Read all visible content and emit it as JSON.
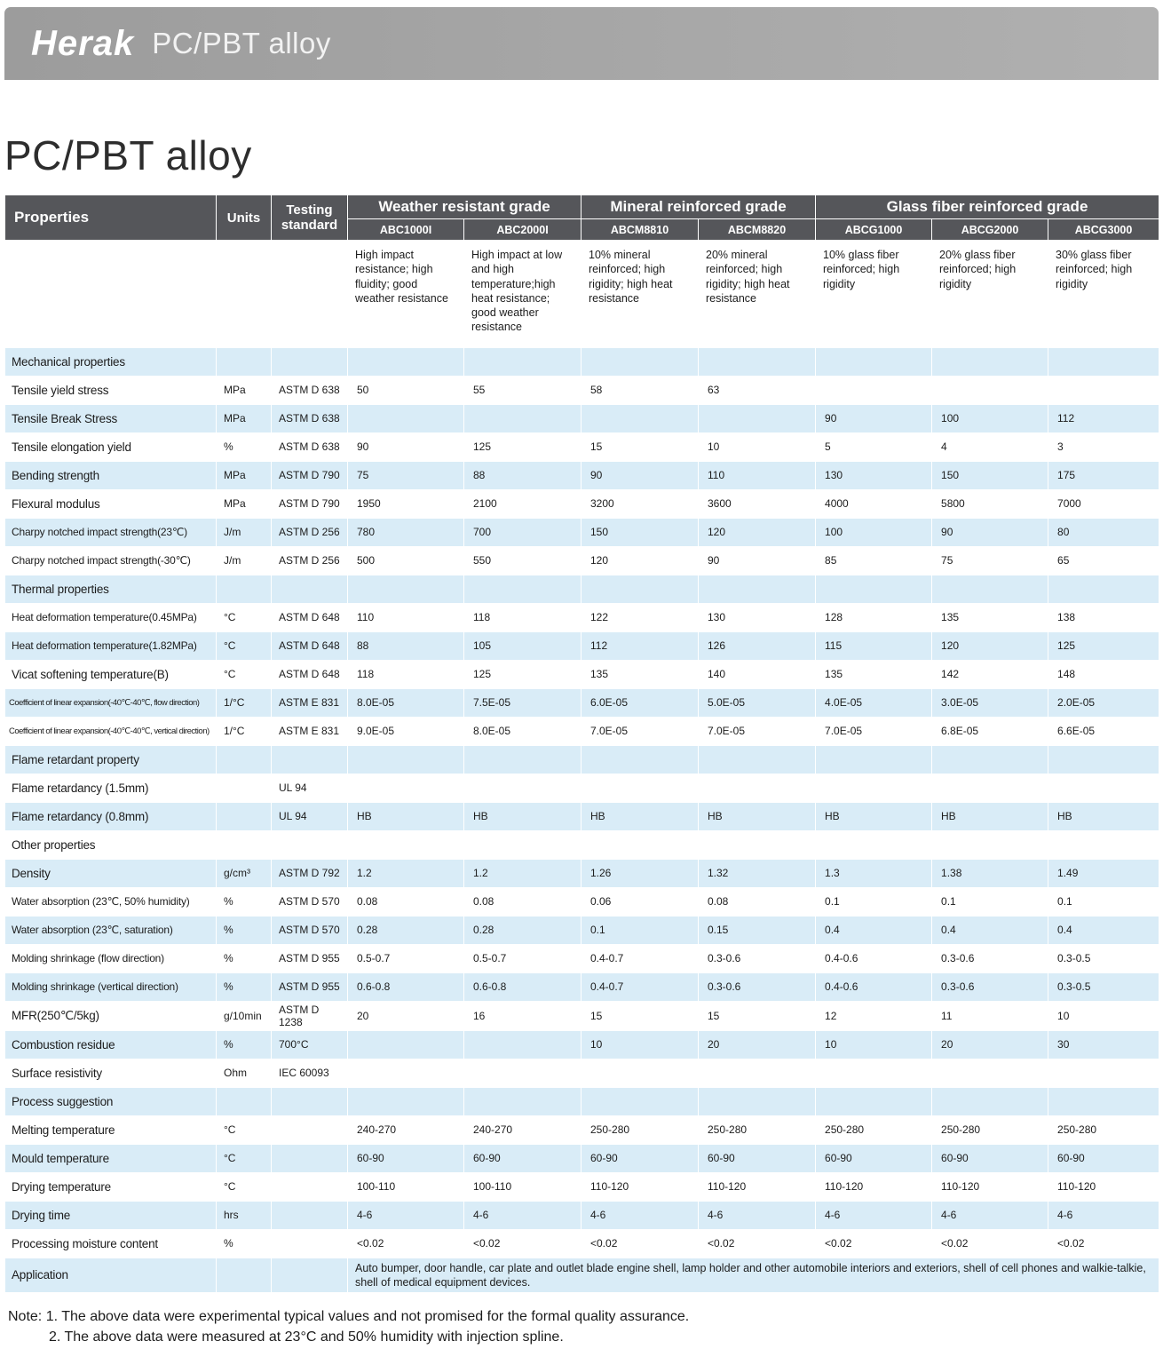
{
  "banner": {
    "logo": "Herak",
    "subtitle": "PC/PBT alloy"
  },
  "page_title": "PC/PBT alloy",
  "colors": {
    "header_bg": "#55565A",
    "row_blue": "#D9ECF7",
    "banner_gray": "#A6A6A6",
    "text": "#1C1C1C"
  },
  "table": {
    "header": {
      "properties": "Properties",
      "units": "Units",
      "standard": "Testing standard",
      "groups": [
        {
          "label": "Weather resistant grade",
          "products": [
            "ABC1000I",
            "ABC2000I"
          ]
        },
        {
          "label": "Mineral reinforced grade",
          "products": [
            "ABCM8810",
            "ABCM8820"
          ]
        },
        {
          "label": "Glass fiber reinforced grade",
          "products": [
            "ABCG1000",
            "ABCG2000",
            "ABCG3000"
          ]
        }
      ]
    },
    "descriptions": [
      "High impact resistance; high fluidity; good weather resistance",
      "High impact at low and high temperature;high heat resistance; good weather resistance",
      "10% mineral reinforced; high rigidity; high heat resistance",
      "20% mineral reinforced; high rigidity; high heat resistance",
      "10% glass fiber reinforced; high rigidity",
      "20% glass fiber reinforced; high rigidity",
      "30% glass fiber reinforced; high rigidity"
    ],
    "rows": [
      {
        "type": "section",
        "name": "Mechanical properties"
      },
      {
        "type": "data",
        "name": "Tensile yield stress",
        "units": "MPa",
        "standard": "ASTM D 638",
        "values": [
          "50",
          "55",
          "58",
          "63",
          "",
          "",
          ""
        ]
      },
      {
        "type": "data",
        "name": "Tensile Break Stress",
        "units": "MPa",
        "standard": "ASTM D 638",
        "values": [
          "",
          "",
          "",
          "",
          "90",
          "100",
          "112"
        ]
      },
      {
        "type": "data",
        "name": "Tensile elongation yield",
        "units": "%",
        "standard": "ASTM D 638",
        "values": [
          "90",
          "125",
          "15",
          "10",
          "5",
          "4",
          "3"
        ]
      },
      {
        "type": "data",
        "name": "Bending strength",
        "units": "MPa",
        "standard": "ASTM D 790",
        "values": [
          "75",
          "88",
          "90",
          "110",
          "130",
          "150",
          "175"
        ]
      },
      {
        "type": "data",
        "name": "Flexural modulus",
        "units": "MPa",
        "standard": "ASTM D 790",
        "values": [
          "1950",
          "2100",
          "3200",
          "3600",
          "4000",
          "5800",
          "7000"
        ]
      },
      {
        "type": "data",
        "name": "Charpy notched impact strength(23℃)",
        "units": "J/m",
        "standard": "ASTM D 256",
        "values": [
          "780",
          "700",
          "150",
          "120",
          "100",
          "90",
          "80"
        ]
      },
      {
        "type": "data",
        "name": "Charpy notched impact strength(-30℃)",
        "units": "J/m",
        "standard": "ASTM D 256",
        "values": [
          "500",
          "550",
          "120",
          "90",
          "85",
          "75",
          "65"
        ]
      },
      {
        "type": "section",
        "name": "Thermal properties"
      },
      {
        "type": "data",
        "name": "Heat deformation temperature(0.45MPa)",
        "units": "°C",
        "standard": "ASTM D 648",
        "values": [
          "110",
          "118",
          "122",
          "130",
          "128",
          "135",
          "138"
        ]
      },
      {
        "type": "data",
        "name": "Heat deformation temperature(1.82MPa)",
        "units": "°C",
        "standard": "ASTM D 648",
        "values": [
          "88",
          "105",
          "112",
          "126",
          "115",
          "120",
          "125"
        ]
      },
      {
        "type": "data",
        "name": "Vicat softening temperature(B)",
        "units": "°C",
        "standard": "ASTM D 648",
        "values": [
          "118",
          "125",
          "135",
          "140",
          "135",
          "142",
          "148"
        ]
      },
      {
        "type": "data",
        "name": "Coefficient of linear expansion(-40℃-40℃, flow direction)",
        "units": "1/°C",
        "standard": "ASTM E 831",
        "values": [
          "8.0E-05",
          "7.5E-05",
          "6.0E-05",
          "5.0E-05",
          "4.0E-05",
          "3.0E-05",
          "2.0E-05"
        ]
      },
      {
        "type": "data",
        "name": "Coefficient of linear expansion(-40℃-40℃, vertical direction)",
        "units": "1/°C",
        "standard": "ASTM E 831",
        "values": [
          "9.0E-05",
          "8.0E-05",
          "7.0E-05",
          "7.0E-05",
          "7.0E-05",
          "6.8E-05",
          "6.6E-05"
        ]
      },
      {
        "type": "section",
        "name": "Flame retardant property"
      },
      {
        "type": "data",
        "name": "Flame retardancy (1.5mm)",
        "units": "",
        "standard": "UL 94",
        "values": [
          "",
          "",
          "",
          "",
          "",
          "",
          ""
        ]
      },
      {
        "type": "data",
        "name": "Flame retardancy (0.8mm)",
        "units": "",
        "standard": "UL 94",
        "values": [
          "HB",
          "HB",
          "HB",
          "HB",
          "HB",
          "HB",
          "HB"
        ]
      },
      {
        "type": "section",
        "name": "Other properties"
      },
      {
        "type": "data",
        "name": "Density",
        "units": "g/cm³",
        "standard": "ASTM D 792",
        "values": [
          "1.2",
          "1.2",
          "1.26",
          "1.32",
          "1.3",
          "1.38",
          "1.49"
        ]
      },
      {
        "type": "data",
        "name": "Water absorption (23℃, 50% humidity)",
        "units": "%",
        "standard": "ASTM D 570",
        "values": [
          "0.08",
          "0.08",
          "0.06",
          "0.08",
          "0.1",
          "0.1",
          "0.1"
        ]
      },
      {
        "type": "data",
        "name": "Water absorption (23℃, saturation)",
        "units": "%",
        "standard": "ASTM D 570",
        "values": [
          "0.28",
          "0.28",
          "0.1",
          "0.15",
          "0.4",
          "0.4",
          "0.4"
        ]
      },
      {
        "type": "data",
        "name": "Molding shrinkage (flow direction)",
        "units": "%",
        "standard": "ASTM D 955",
        "values": [
          "0.5-0.7",
          "0.5-0.7",
          "0.4-0.7",
          "0.3-0.6",
          "0.4-0.6",
          "0.3-0.6",
          "0.3-0.5"
        ]
      },
      {
        "type": "data",
        "name": "Molding shrinkage (vertical direction)",
        "units": "%",
        "standard": "ASTM D 955",
        "values": [
          "0.6-0.8",
          "0.6-0.8",
          "0.4-0.7",
          "0.3-0.6",
          "0.4-0.6",
          "0.3-0.6",
          "0.3-0.5"
        ]
      },
      {
        "type": "data",
        "name": "MFR(250℃/5kg)",
        "units": "g/10min",
        "standard": "ASTM D 1238",
        "values": [
          "20",
          "16",
          "15",
          "15",
          "12",
          "11",
          "10"
        ]
      },
      {
        "type": "data",
        "name": "Combustion residue",
        "units": "%",
        "standard": "700°C",
        "values": [
          "",
          "",
          "10",
          "20",
          "10",
          "20",
          "30"
        ]
      },
      {
        "type": "data",
        "name": "Surface resistivity",
        "units": "Ohm",
        "standard": "IEC 60093",
        "values": [
          "",
          "",
          "",
          "",
          "",
          "",
          ""
        ]
      },
      {
        "type": "section",
        "name": "Process suggestion"
      },
      {
        "type": "data",
        "name": "Melting temperature",
        "units": "°C",
        "standard": "",
        "values": [
          "240-270",
          "240-270",
          "250-280",
          "250-280",
          "250-280",
          "250-280",
          "250-280"
        ]
      },
      {
        "type": "data",
        "name": "Mould temperature",
        "units": "°C",
        "standard": "",
        "values": [
          "60-90",
          "60-90",
          "60-90",
          "60-90",
          "60-90",
          "60-90",
          "60-90"
        ]
      },
      {
        "type": "data",
        "name": "Drying temperature",
        "units": "°C",
        "standard": "",
        "values": [
          "100-110",
          "100-110",
          "110-120",
          "110-120",
          "110-120",
          "110-120",
          "110-120"
        ]
      },
      {
        "type": "data",
        "name": "Drying time",
        "units": "hrs",
        "standard": "",
        "values": [
          "4-6",
          "4-6",
          "4-6",
          "4-6",
          "4-6",
          "4-6",
          "4-6"
        ]
      },
      {
        "type": "data",
        "name": "Processing moisture content",
        "units": "%",
        "standard": "",
        "values": [
          "<0.02",
          "<0.02",
          "<0.02",
          "<0.02",
          "<0.02",
          "<0.02",
          "<0.02"
        ]
      },
      {
        "type": "span",
        "name": "Application",
        "text": "Auto bumper, door handle, car plate and outlet blade engine shell, lamp holder and other automobile interiors and exteriors, shell of cell phones and walkie-talkie, shell of medical equipment devices."
      }
    ]
  },
  "notes": [
    "Note: 1. The above data were experimental typical values and not promised for the formal quality assurance.",
    "2. The above data were measured at 23°C and 50% humidity with injection spline."
  ]
}
